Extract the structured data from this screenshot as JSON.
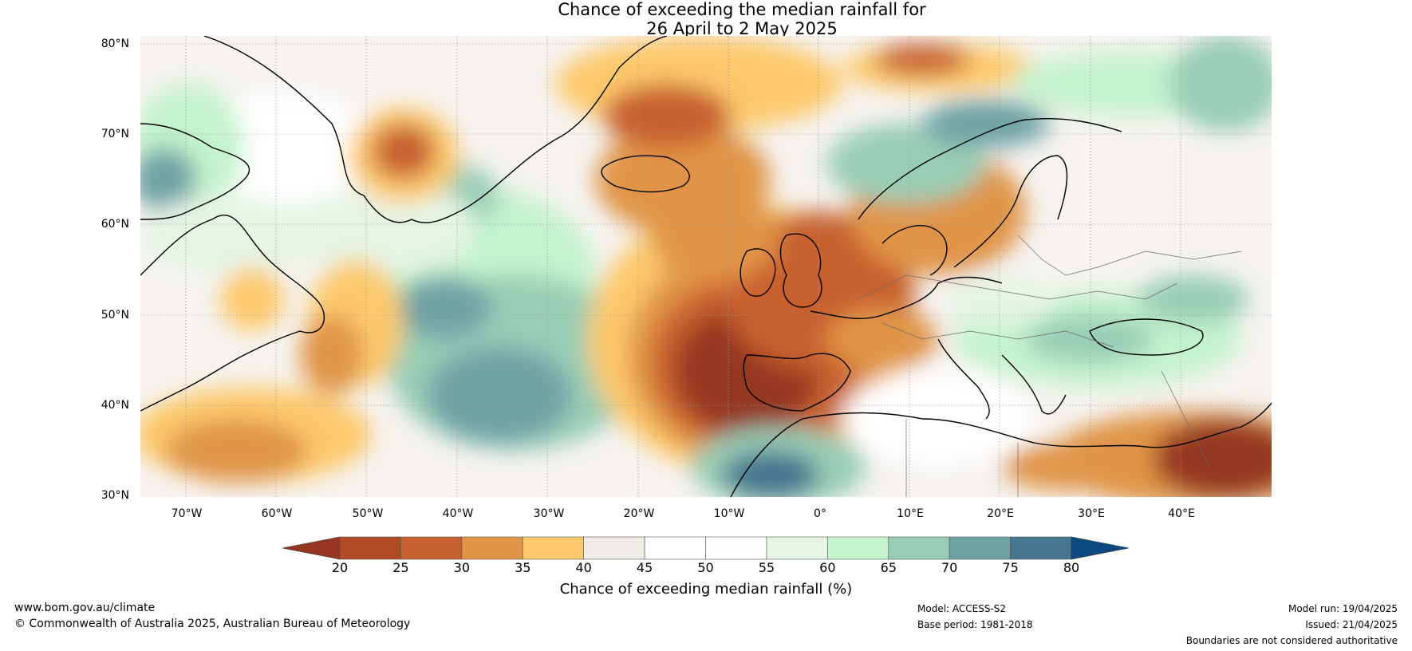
{
  "title": {
    "line1": "Chance of exceeding the median rainfall for",
    "line2": "26 April to 2 May 2025"
  },
  "map": {
    "lat_labels": [
      "80°N",
      "70°N",
      "60°N",
      "50°N",
      "40°N",
      "30°N"
    ],
    "lon_labels": [
      "70°W",
      "60°W",
      "50°W",
      "40°W",
      "30°W",
      "20°W",
      "10°W",
      "0°",
      "10°E",
      "20°E",
      "30°E",
      "40°E"
    ],
    "extent": {
      "lon": [
        -75,
        50
      ],
      "lat": [
        30,
        81
      ]
    }
  },
  "colorbar": {
    "ticks": [
      "20",
      "25",
      "30",
      "35",
      "40",
      "45",
      "50",
      "55",
      "60",
      "65",
      "70",
      "75",
      "80"
    ],
    "colors": [
      "#953720",
      "#b24a26",
      "#c8612e",
      "#e09446",
      "#fdc96c",
      "#efebe6",
      "#ffffff",
      "#fdfdfd",
      "#e6f5e6",
      "#c4f3cc",
      "#98cdb6",
      "#6ea3a5",
      "#45768f",
      "#0d4a80"
    ],
    "label": "Chance of exceeding median rainfall (%)"
  },
  "footer": {
    "url": "www.bom.gov.au/climate",
    "copyright": "© Commonwealth of Australia 2025, Australian Bureau of Meteorology",
    "model": "Model: ACCESS-S2",
    "base_period": "Base period: 1981-2018",
    "model_run": "Model run: 19/04/2025",
    "issued": "Issued: 21/04/2025",
    "disclaimer": "Boundaries are not considered authoritative"
  }
}
